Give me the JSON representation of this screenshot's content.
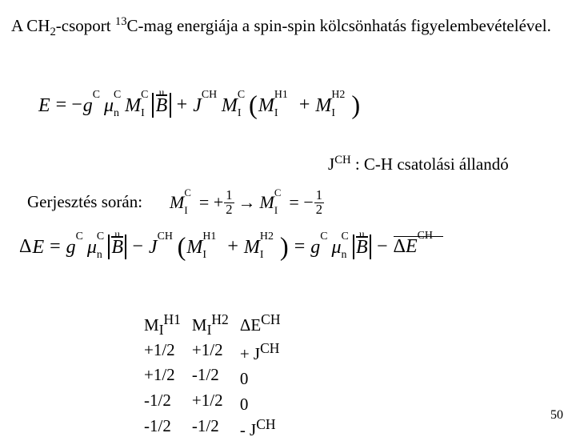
{
  "title_parts": {
    "a": "A CH",
    "b": "2",
    "c": "-csoport ",
    "d": "13",
    "e": "C-mag energiája a spin-spin kölcsönhatás figyelembevételével."
  },
  "jch_parts": {
    "a": "J",
    "b": "CH",
    "c": " : C-H csatolási állandó"
  },
  "excite_label": "Gerjesztés során:",
  "table": {
    "headers": {
      "c1": "M",
      "c1sub": "I",
      "c1sup": "H1",
      "c2": "M",
      "c2sub": "I",
      "c2sup": "H2",
      "c3": "ΔE",
      "c3sup": "CH"
    },
    "rows": [
      {
        "c1": "+1/2",
        "c2": "+1/2",
        "c3a": "+ J",
        "c3b": "CH"
      },
      {
        "c1": "+1/2",
        "c2": "-1/2",
        "c3a": "0",
        "c3b": ""
      },
      {
        "c1": "-1/2",
        "c2": "+1/2",
        "c3a": "0",
        "c3b": ""
      },
      {
        "c1": "-1/2",
        "c2": "-1/2",
        "c3a": "- J",
        "c3b": "CH"
      }
    ]
  },
  "page_number": "50"
}
